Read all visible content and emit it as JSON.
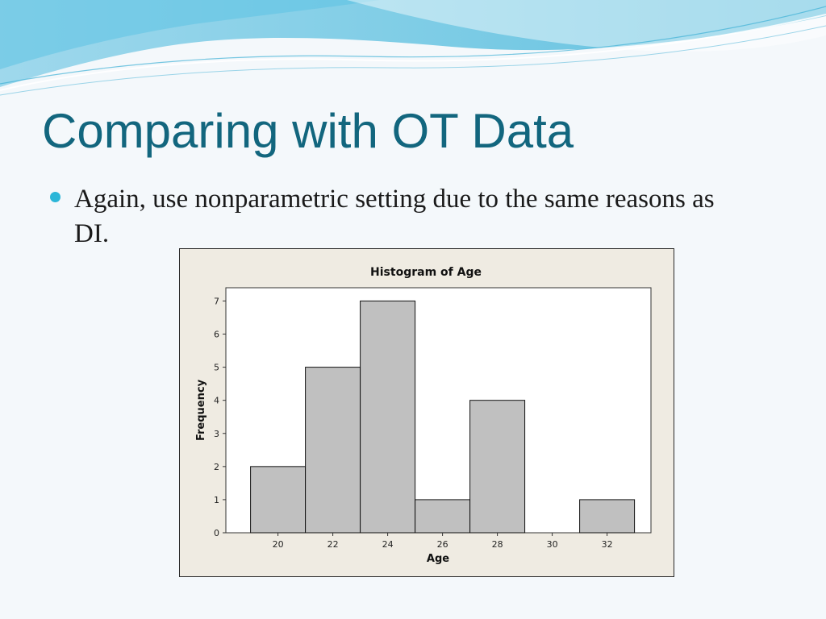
{
  "slide": {
    "title": "Comparing with OT Data",
    "bullet": "Again, use nonparametric setting due to the same reasons as DI."
  },
  "colors": {
    "title": "#12667e",
    "bullet_dot": "#2bb6d8",
    "bar_fill": "#c0c0c0",
    "bar_stroke": "#111111",
    "chart_background": "#efebe2",
    "plot_background": "#ffffff"
  },
  "chart_data": {
    "type": "bar",
    "title": "Histogram of Age",
    "xlabel": "Age",
    "ylabel": "Frequency",
    "bin_width": 2,
    "categories": [
      20,
      22,
      24,
      26,
      28,
      30,
      32
    ],
    "values": [
      2,
      5,
      7,
      1,
      4,
      0,
      1
    ],
    "xticks": [
      20,
      22,
      24,
      26,
      28,
      30,
      32
    ],
    "yticks": [
      0,
      1,
      2,
      3,
      4,
      5,
      6,
      7
    ],
    "xlim": [
      18.1,
      33.6
    ],
    "ylim": [
      0,
      7.4
    ],
    "grid": false,
    "legend": "none"
  }
}
